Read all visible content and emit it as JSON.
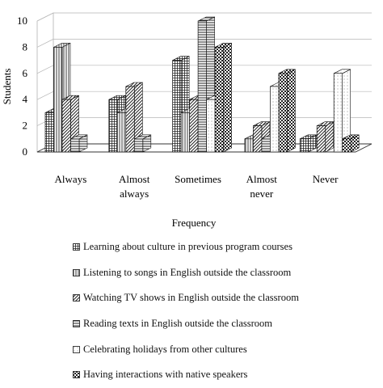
{
  "chart_data": {
    "type": "bar",
    "title": "",
    "xlabel": "Frequency",
    "ylabel": "Students",
    "ylim": [
      0,
      10
    ],
    "yticks": [
      0,
      2,
      4,
      6,
      8,
      10
    ],
    "categories": [
      "Always",
      "Almost always",
      "Sometimes",
      "Almost never",
      "Never"
    ],
    "category_lines": [
      [
        "Always"
      ],
      [
        "Almost",
        "always"
      ],
      [
        "Sometimes"
      ],
      [
        "Almost",
        "never"
      ],
      [
        "Never"
      ]
    ],
    "grid": true,
    "legend_position": "bottom",
    "series": [
      {
        "name": "Learning about culture in previous program courses",
        "values": [
          3,
          4,
          7,
          0,
          1
        ],
        "pattern": "grid"
      },
      {
        "name": "Listening to songs in English outside the classroom",
        "values": [
          8,
          3,
          3,
          1,
          0
        ],
        "pattern": "vertical"
      },
      {
        "name": "Watching TV shows in English outside the classroom",
        "values": [
          4,
          5,
          4,
          2,
          2
        ],
        "pattern": "diagonal"
      },
      {
        "name": "Reading texts in English outside the classroom",
        "values": [
          1,
          1,
          10,
          1,
          0
        ],
        "pattern": "horizontal"
      },
      {
        "name": "Celebrating holidays from other cultures",
        "values": [
          0,
          0,
          4,
          5,
          6
        ],
        "pattern": "dots"
      },
      {
        "name": "Having interactions with native speakers",
        "values": [
          0,
          0,
          8,
          6,
          1
        ],
        "pattern": "checker"
      }
    ]
  }
}
